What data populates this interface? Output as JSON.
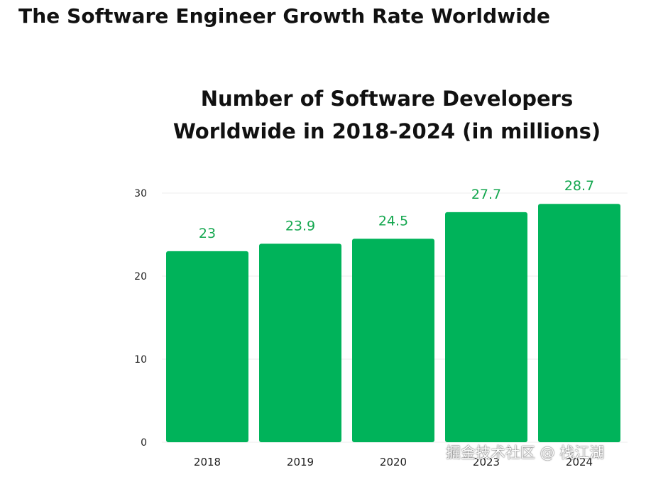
{
  "page_title": "The Software Engineer Growth Rate Worldwide",
  "chart_data": {
    "type": "bar",
    "title": "Number of Software Developers Worldwide in 2018-2024 (in millions)",
    "title_lines": [
      "Number of Software Developers",
      "Worldwide in 2018-2024 (in millions)"
    ],
    "categories": [
      "2018",
      "2019",
      "2020",
      "2023",
      "2024"
    ],
    "values": [
      23,
      23.9,
      24.5,
      27.7,
      28.7
    ],
    "data_labels": [
      "23",
      "23.9",
      "24.5",
      "27.7",
      "28.7"
    ],
    "yticks": [
      "0",
      "10",
      "20",
      "30"
    ],
    "ylim": [
      0,
      30
    ],
    "xlabel": "",
    "ylabel": "",
    "grid": true,
    "legend": "none",
    "colors": {
      "bar": "#00b35a",
      "label": "#14a74f",
      "grid": "#ececec",
      "tick": "#222222"
    }
  },
  "watermark": "掘金技术社区 @ 栈江湖"
}
